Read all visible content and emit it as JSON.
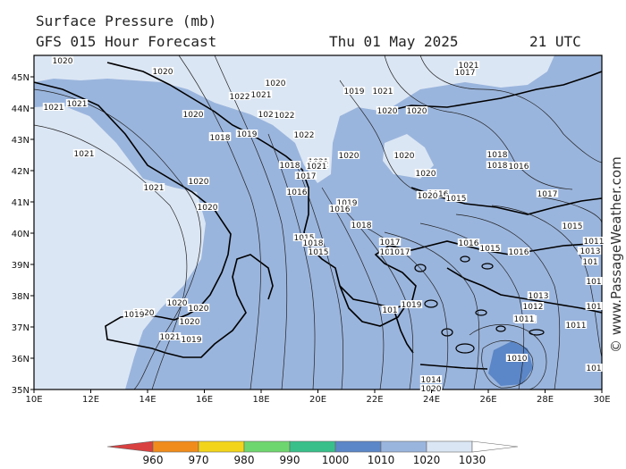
{
  "header": {
    "title": "Surface Pressure (mb)",
    "subtitle": "GFS 015 Hour Forecast",
    "date": "Thu 01 May 2025",
    "time": "21 UTC"
  },
  "credit": "© www.PassageWeather.com",
  "axes": {
    "lat_labels": [
      "45N",
      "44N",
      "43N",
      "42N",
      "41N",
      "40N",
      "39N",
      "38N",
      "37N",
      "36N",
      "35N"
    ],
    "lon_labels": [
      "10E",
      "12E",
      "14E",
      "16E",
      "18E",
      "20E",
      "22E",
      "24E",
      "26E",
      "28E",
      "30E"
    ]
  },
  "isobar_labels": [
    "1020",
    "1020",
    "1021",
    "1021",
    "1020",
    "1022",
    "1021",
    "1022",
    "1022",
    "1020",
    "1019",
    "1021",
    "1022",
    "1021",
    "1020",
    "1022",
    "1021",
    "1020",
    "1020",
    "1019",
    "1018",
    "1019",
    "1021",
    "1020",
    "1020",
    "1018",
    "1017",
    "1016",
    "1019",
    "1016",
    "1018",
    "1017",
    "1018",
    "1018",
    "1018",
    "1016",
    "1015",
    "1018",
    "1017",
    "1016",
    "1015",
    "1016",
    "1015",
    "1011",
    "1013",
    "1012",
    "1011",
    "1010",
    "1011",
    "1017",
    "1016",
    "1015",
    "1014",
    "1020",
    "1021",
    "1020",
    "1019",
    "1020",
    "1020",
    "1020",
    "1021",
    "1019",
    "1020",
    "1021",
    "1017",
    "1015",
    "1011",
    "1011",
    "1013",
    "101",
    "101",
    "101",
    "101",
    "101",
    "1019",
    "1020",
    "1020"
  ],
  "legend": {
    "colors": [
      "#d94040",
      "#f08c1c",
      "#f2d41a",
      "#6ed66e",
      "#38bf8a",
      "#5b86c7",
      "#9ab5dd",
      "#dbe6f4",
      "#ffffff"
    ],
    "ticks": [
      "960",
      "970",
      "980",
      "990",
      "1000",
      "1010",
      "1020",
      "1030"
    ]
  }
}
